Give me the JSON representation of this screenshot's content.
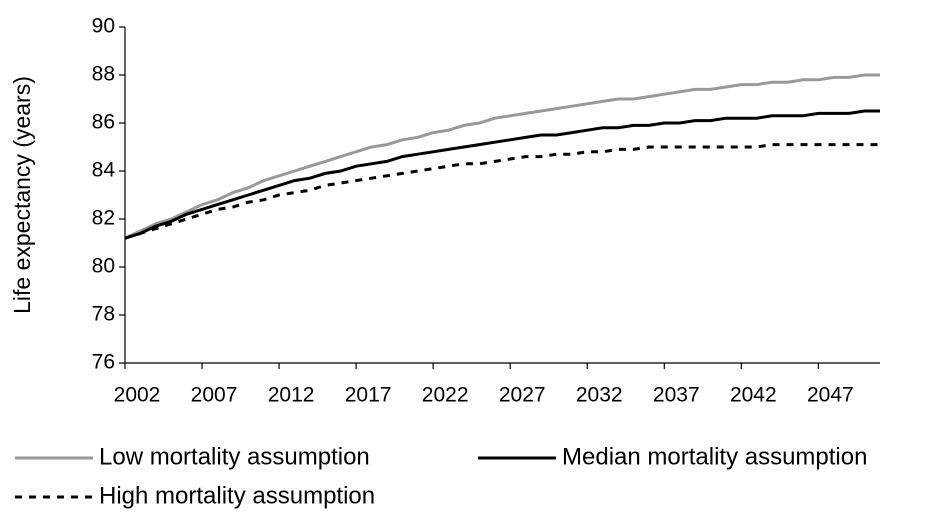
{
  "chart_data": {
    "type": "line",
    "y_label": "Life expectancy (years)",
    "x": [
      2002,
      2003,
      2004,
      2005,
      2006,
      2007,
      2008,
      2009,
      2010,
      2011,
      2012,
      2013,
      2014,
      2015,
      2016,
      2017,
      2018,
      2019,
      2020,
      2021,
      2022,
      2023,
      2024,
      2025,
      2026,
      2027,
      2028,
      2029,
      2030,
      2031,
      2032,
      2033,
      2034,
      2035,
      2036,
      2037,
      2038,
      2039,
      2040,
      2041,
      2042,
      2043,
      2044,
      2045,
      2046,
      2047,
      2048,
      2049,
      2050,
      2051
    ],
    "xlim": [
      2002,
      2051
    ],
    "xticks": [
      2002,
      2007,
      2012,
      2017,
      2022,
      2027,
      2032,
      2037,
      2042,
      2047
    ],
    "ylim": [
      76,
      90
    ],
    "yticks": [
      76,
      78,
      80,
      82,
      84,
      86,
      88,
      90
    ],
    "grid": false,
    "series": [
      {
        "name": "Low mortality assumption",
        "color": "#999999",
        "linestyle": "solid",
        "values": [
          81.2,
          81.5,
          81.8,
          82.0,
          82.3,
          82.6,
          82.8,
          83.1,
          83.3,
          83.6,
          83.8,
          84.0,
          84.2,
          84.4,
          84.6,
          84.8,
          85.0,
          85.1,
          85.3,
          85.4,
          85.6,
          85.7,
          85.9,
          86.0,
          86.2,
          86.3,
          86.4,
          86.5,
          86.6,
          86.7,
          86.8,
          86.9,
          87.0,
          87.0,
          87.1,
          87.2,
          87.3,
          87.4,
          87.4,
          87.5,
          87.6,
          87.6,
          87.7,
          87.7,
          87.8,
          87.8,
          87.9,
          87.9,
          88.0,
          88.0
        ]
      },
      {
        "name": "Median mortality assumption",
        "color": "#000000",
        "linestyle": "solid",
        "values": [
          81.2,
          81.4,
          81.7,
          81.9,
          82.2,
          82.4,
          82.6,
          82.8,
          83.0,
          83.2,
          83.4,
          83.6,
          83.7,
          83.9,
          84.0,
          84.2,
          84.3,
          84.4,
          84.6,
          84.7,
          84.8,
          84.9,
          85.0,
          85.1,
          85.2,
          85.3,
          85.4,
          85.5,
          85.5,
          85.6,
          85.7,
          85.8,
          85.8,
          85.9,
          85.9,
          86.0,
          86.0,
          86.1,
          86.1,
          86.2,
          86.2,
          86.2,
          86.3,
          86.3,
          86.3,
          86.4,
          86.4,
          86.4,
          86.5,
          86.5
        ]
      },
      {
        "name": "High mortality assumption",
        "color": "#000000",
        "linestyle": "dashed",
        "values": [
          81.2,
          81.4,
          81.6,
          81.8,
          82.0,
          82.2,
          82.4,
          82.5,
          82.7,
          82.8,
          83.0,
          83.1,
          83.2,
          83.4,
          83.5,
          83.6,
          83.7,
          83.8,
          83.9,
          84.0,
          84.1,
          84.2,
          84.3,
          84.3,
          84.4,
          84.5,
          84.6,
          84.6,
          84.7,
          84.7,
          84.8,
          84.8,
          84.9,
          84.9,
          85.0,
          85.0,
          85.0,
          85.0,
          85.0,
          85.0,
          85.0,
          85.0,
          85.1,
          85.1,
          85.1,
          85.1,
          85.1,
          85.1,
          85.1,
          85.1
        ]
      }
    ]
  }
}
